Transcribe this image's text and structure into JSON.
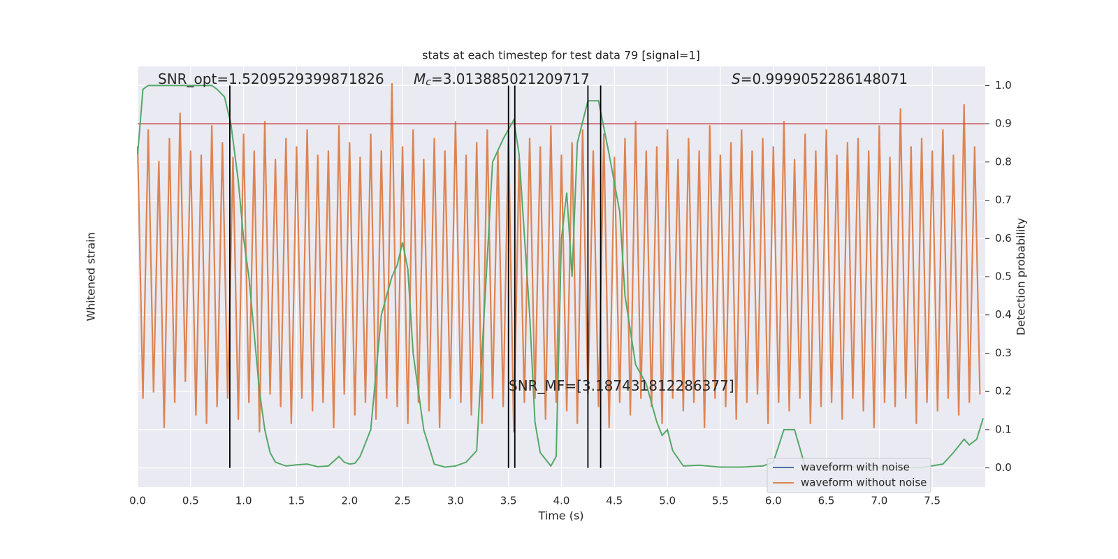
{
  "chart_data": {
    "type": "line",
    "title": "stats at each timestep for test data 79 [signal=1]",
    "xlabel": "Time (s)",
    "ylabel": "Whitened strain",
    "y2label": "Detection probability",
    "xlim": [
      0,
      8
    ],
    "ylim": [
      -1,
      1
    ],
    "y2lim": [
      -0.05,
      1.05
    ],
    "xticks": [
      {
        "value": 0,
        "label": "0.0"
      },
      0.5,
      {
        "value": 1,
        "label": "1.0"
      },
      1.5,
      {
        "value": 2,
        "label": "2.0"
      },
      2.5,
      {
        "value": 3,
        "label": "3.0"
      },
      3.5,
      {
        "value": 4,
        "label": "4.0"
      },
      4.5,
      {
        "value": 5,
        "label": "5.0"
      },
      5.5,
      {
        "value": 6,
        "label": "6.0"
      },
      6.5,
      {
        "value": 7,
        "label": "7.0"
      },
      7.5
    ],
    "y2ticks": [
      {
        "value": 0,
        "label": "0.0"
      },
      0.1,
      0.2,
      0.3,
      0.4,
      0.5,
      0.6,
      0.7,
      0.8,
      0.9,
      {
        "value": 1,
        "label": "1.0"
      }
    ],
    "grid": true,
    "legend": "lower right",
    "series": [
      {
        "name": "waveform with noise",
        "color": "#4c72b0",
        "axis": "y",
        "x": [],
        "values": []
      },
      {
        "name": "waveform without noise",
        "color": "#dd8452",
        "axis": "y",
        "x": [
          0,
          0.05,
          0.1,
          0.15,
          0.2,
          0.25,
          0.3,
          0.35,
          0.4,
          0.45,
          0.5,
          0.55,
          0.6,
          0.65,
          0.7,
          0.75,
          0.8,
          0.85,
          0.9,
          0.95,
          1,
          1.05,
          1.1,
          1.15,
          1.2,
          1.25,
          1.3,
          1.35,
          1.4,
          1.45,
          1.5,
          1.55,
          1.6,
          1.65,
          1.7,
          1.75,
          1.8,
          1.85,
          1.9,
          1.95,
          2,
          2.05,
          2.1,
          2.15,
          2.2,
          2.25,
          2.3,
          2.35,
          2.4,
          2.45,
          2.5,
          2.55,
          2.6,
          2.65,
          2.7,
          2.75,
          2.8,
          2.85,
          2.9,
          2.95,
          3,
          3.05,
          3.1,
          3.15,
          3.2,
          3.25,
          3.3,
          3.35,
          3.4,
          3.45,
          3.5,
          3.55,
          3.6,
          3.65,
          3.7,
          3.75,
          3.8,
          3.85,
          3.9,
          3.95,
          4,
          4.05,
          4.1,
          4.15,
          4.2,
          4.25,
          4.3,
          4.35,
          4.4,
          4.45,
          4.5,
          4.55,
          4.6,
          4.65,
          4.7,
          4.75,
          4.8,
          4.85,
          4.9,
          4.95,
          5,
          5.05,
          5.1,
          5.15,
          5.2,
          5.25,
          5.3,
          5.35,
          5.4,
          5.45,
          5.5,
          5.55,
          5.6,
          5.65,
          5.7,
          5.75,
          5.8,
          5.85,
          5.9,
          5.95,
          6,
          6.05,
          6.1,
          6.15,
          6.2,
          6.25,
          6.3,
          6.35,
          6.4,
          6.45,
          6.5,
          6.55,
          6.6,
          6.65,
          6.7,
          6.75,
          6.8,
          6.85,
          6.9,
          6.95,
          7,
          7.05,
          7.1,
          7.15,
          7.2,
          7.25,
          7.3,
          7.35,
          7.4,
          7.45,
          7.5,
          7.55,
          7.6,
          7.65,
          7.7,
          7.75,
          7.8,
          7.85,
          7.9,
          7.95
        ],
        "values": [
          0.62,
          -0.58,
          0.7,
          -0.55,
          0.55,
          -0.72,
          0.66,
          -0.6,
          0.78,
          -0.5,
          0.6,
          -0.66,
          0.58,
          -0.7,
          0.72,
          -0.62,
          0.64,
          -0.58,
          0.57,
          -0.68,
          0.68,
          -0.6,
          0.6,
          -0.74,
          0.74,
          -0.56,
          0.56,
          -0.62,
          0.66,
          -0.7,
          0.62,
          -0.58,
          0.7,
          -0.64,
          0.58,
          -0.6,
          0.6,
          -0.72,
          0.72,
          -0.56,
          0.64,
          -0.66,
          0.57,
          -0.6,
          0.68,
          -0.68,
          0.6,
          -0.58,
          0.92,
          -0.62,
          0.62,
          -0.7,
          0.7,
          -0.6,
          0.56,
          -0.64,
          0.66,
          -0.72,
          0.6,
          -0.58,
          0.74,
          -0.6,
          0.58,
          -0.66,
          0.64,
          -0.7,
          0.7,
          -0.58,
          0.6,
          -0.62,
          0.68,
          -0.74,
          0.56,
          -0.6,
          0.66,
          -0.58,
          0.62,
          -0.68,
          0.72,
          -0.6,
          0.58,
          -0.64,
          0.64,
          -0.7,
          0.7,
          -0.56,
          0.6,
          -0.62,
          0.68,
          -0.72,
          0.57,
          -0.6,
          0.66,
          -0.66,
          0.74,
          -0.58,
          0.6,
          -0.62,
          0.62,
          -0.7,
          0.7,
          -0.58,
          0.56,
          -0.64,
          0.66,
          -0.6,
          0.6,
          -0.72,
          0.72,
          -0.58,
          0.58,
          -0.62,
          0.64,
          -0.68,
          0.7,
          -0.6,
          0.6,
          -0.56,
          0.66,
          -0.7,
          0.62,
          -0.6,
          0.74,
          -0.64,
          0.56,
          -0.58,
          0.68,
          -0.7,
          0.6,
          -0.62,
          0.7,
          -0.6,
          0.58,
          -0.68,
          0.64,
          -0.58,
          0.66,
          -0.64,
          0.6,
          -0.72,
          0.72,
          -0.6,
          0.57,
          -0.62,
          0.8,
          -0.58,
          0.62,
          -0.7,
          0.66,
          -0.6,
          0.6,
          -0.64,
          0.7,
          -0.58,
          0.58,
          -0.66,
          0.82,
          -0.6,
          0.62,
          -0.56
        ]
      }
    ],
    "probability": {
      "color": "#55a868",
      "axis": "y2",
      "x": [
        0,
        0.05,
        0.1,
        0.2,
        0.4,
        0.6,
        0.7,
        0.75,
        0.82,
        0.88,
        0.95,
        1,
        1.05,
        1.1,
        1.15,
        1.2,
        1.25,
        1.3,
        1.4,
        1.5,
        1.6,
        1.7,
        1.8,
        1.9,
        1.95,
        2,
        2.05,
        2.1,
        2.2,
        2.3,
        2.4,
        2.45,
        2.5,
        2.55,
        2.6,
        2.7,
        2.8,
        2.9,
        3,
        3.1,
        3.2,
        3.25,
        3.35,
        3.45,
        3.55,
        3.6,
        3.7,
        3.75,
        3.8,
        3.9,
        3.95,
        4,
        4.05,
        4.1,
        4.15,
        4.25,
        4.35,
        4.45,
        4.55,
        4.6,
        4.7,
        4.8,
        4.9,
        4.95,
        5,
        5.05,
        5.15,
        5.3,
        5.5,
        5.7,
        5.9,
        6,
        6.1,
        6.2,
        6.3,
        6.8,
        7.4,
        7.6,
        7.7,
        7.8,
        7.85,
        7.92,
        7.98
      ],
      "values": [
        0.82,
        0.99,
        1,
        1,
        1,
        1,
        1,
        0.99,
        0.97,
        0.9,
        0.75,
        0.6,
        0.5,
        0.35,
        0.2,
        0.1,
        0.04,
        0.015,
        0.005,
        0.008,
        0.01,
        0.003,
        0.005,
        0.03,
        0.015,
        0.01,
        0.012,
        0.03,
        0.1,
        0.4,
        0.5,
        0.53,
        0.59,
        0.52,
        0.3,
        0.1,
        0.01,
        0.002,
        0.005,
        0.015,
        0.045,
        0.3,
        0.8,
        0.86,
        0.91,
        0.82,
        0.4,
        0.12,
        0.04,
        0.005,
        0.03,
        0.6,
        0.72,
        0.5,
        0.85,
        0.96,
        0.96,
        0.82,
        0.67,
        0.45,
        0.27,
        0.22,
        0.12,
        0.085,
        0.1,
        0.045,
        0.005,
        0.007,
        0.002,
        0.002,
        0.005,
        0.015,
        0.1,
        0.1,
        0.004,
        0.002,
        0.001,
        0.01,
        0.04,
        0.075,
        0.06,
        0.075,
        0.13
      ]
    },
    "threshold": {
      "value": 0.9,
      "color": "#c44e52"
    },
    "vlines": {
      "x": [
        0.87,
        3.5,
        3.56,
        4.25,
        4.37
      ],
      "color": "#000000"
    },
    "annotations": [
      {
        "parts": [
          {
            "text": "SNR_opt=1.5209529399871826"
          }
        ]
      },
      {
        "parts": [
          {
            "text": "M",
            "italic": true
          },
          {
            "text": "c",
            "italic": true,
            "sub": true
          },
          {
            "text": "=3.013885021209717"
          }
        ]
      },
      {
        "parts": [
          {
            "text": "S",
            "italic": true
          },
          {
            "text": "=0.9999052286148071"
          }
        ]
      },
      {
        "parts": [
          {
            "text": "SNR_MF=[3.187431812286377]"
          }
        ]
      }
    ]
  }
}
